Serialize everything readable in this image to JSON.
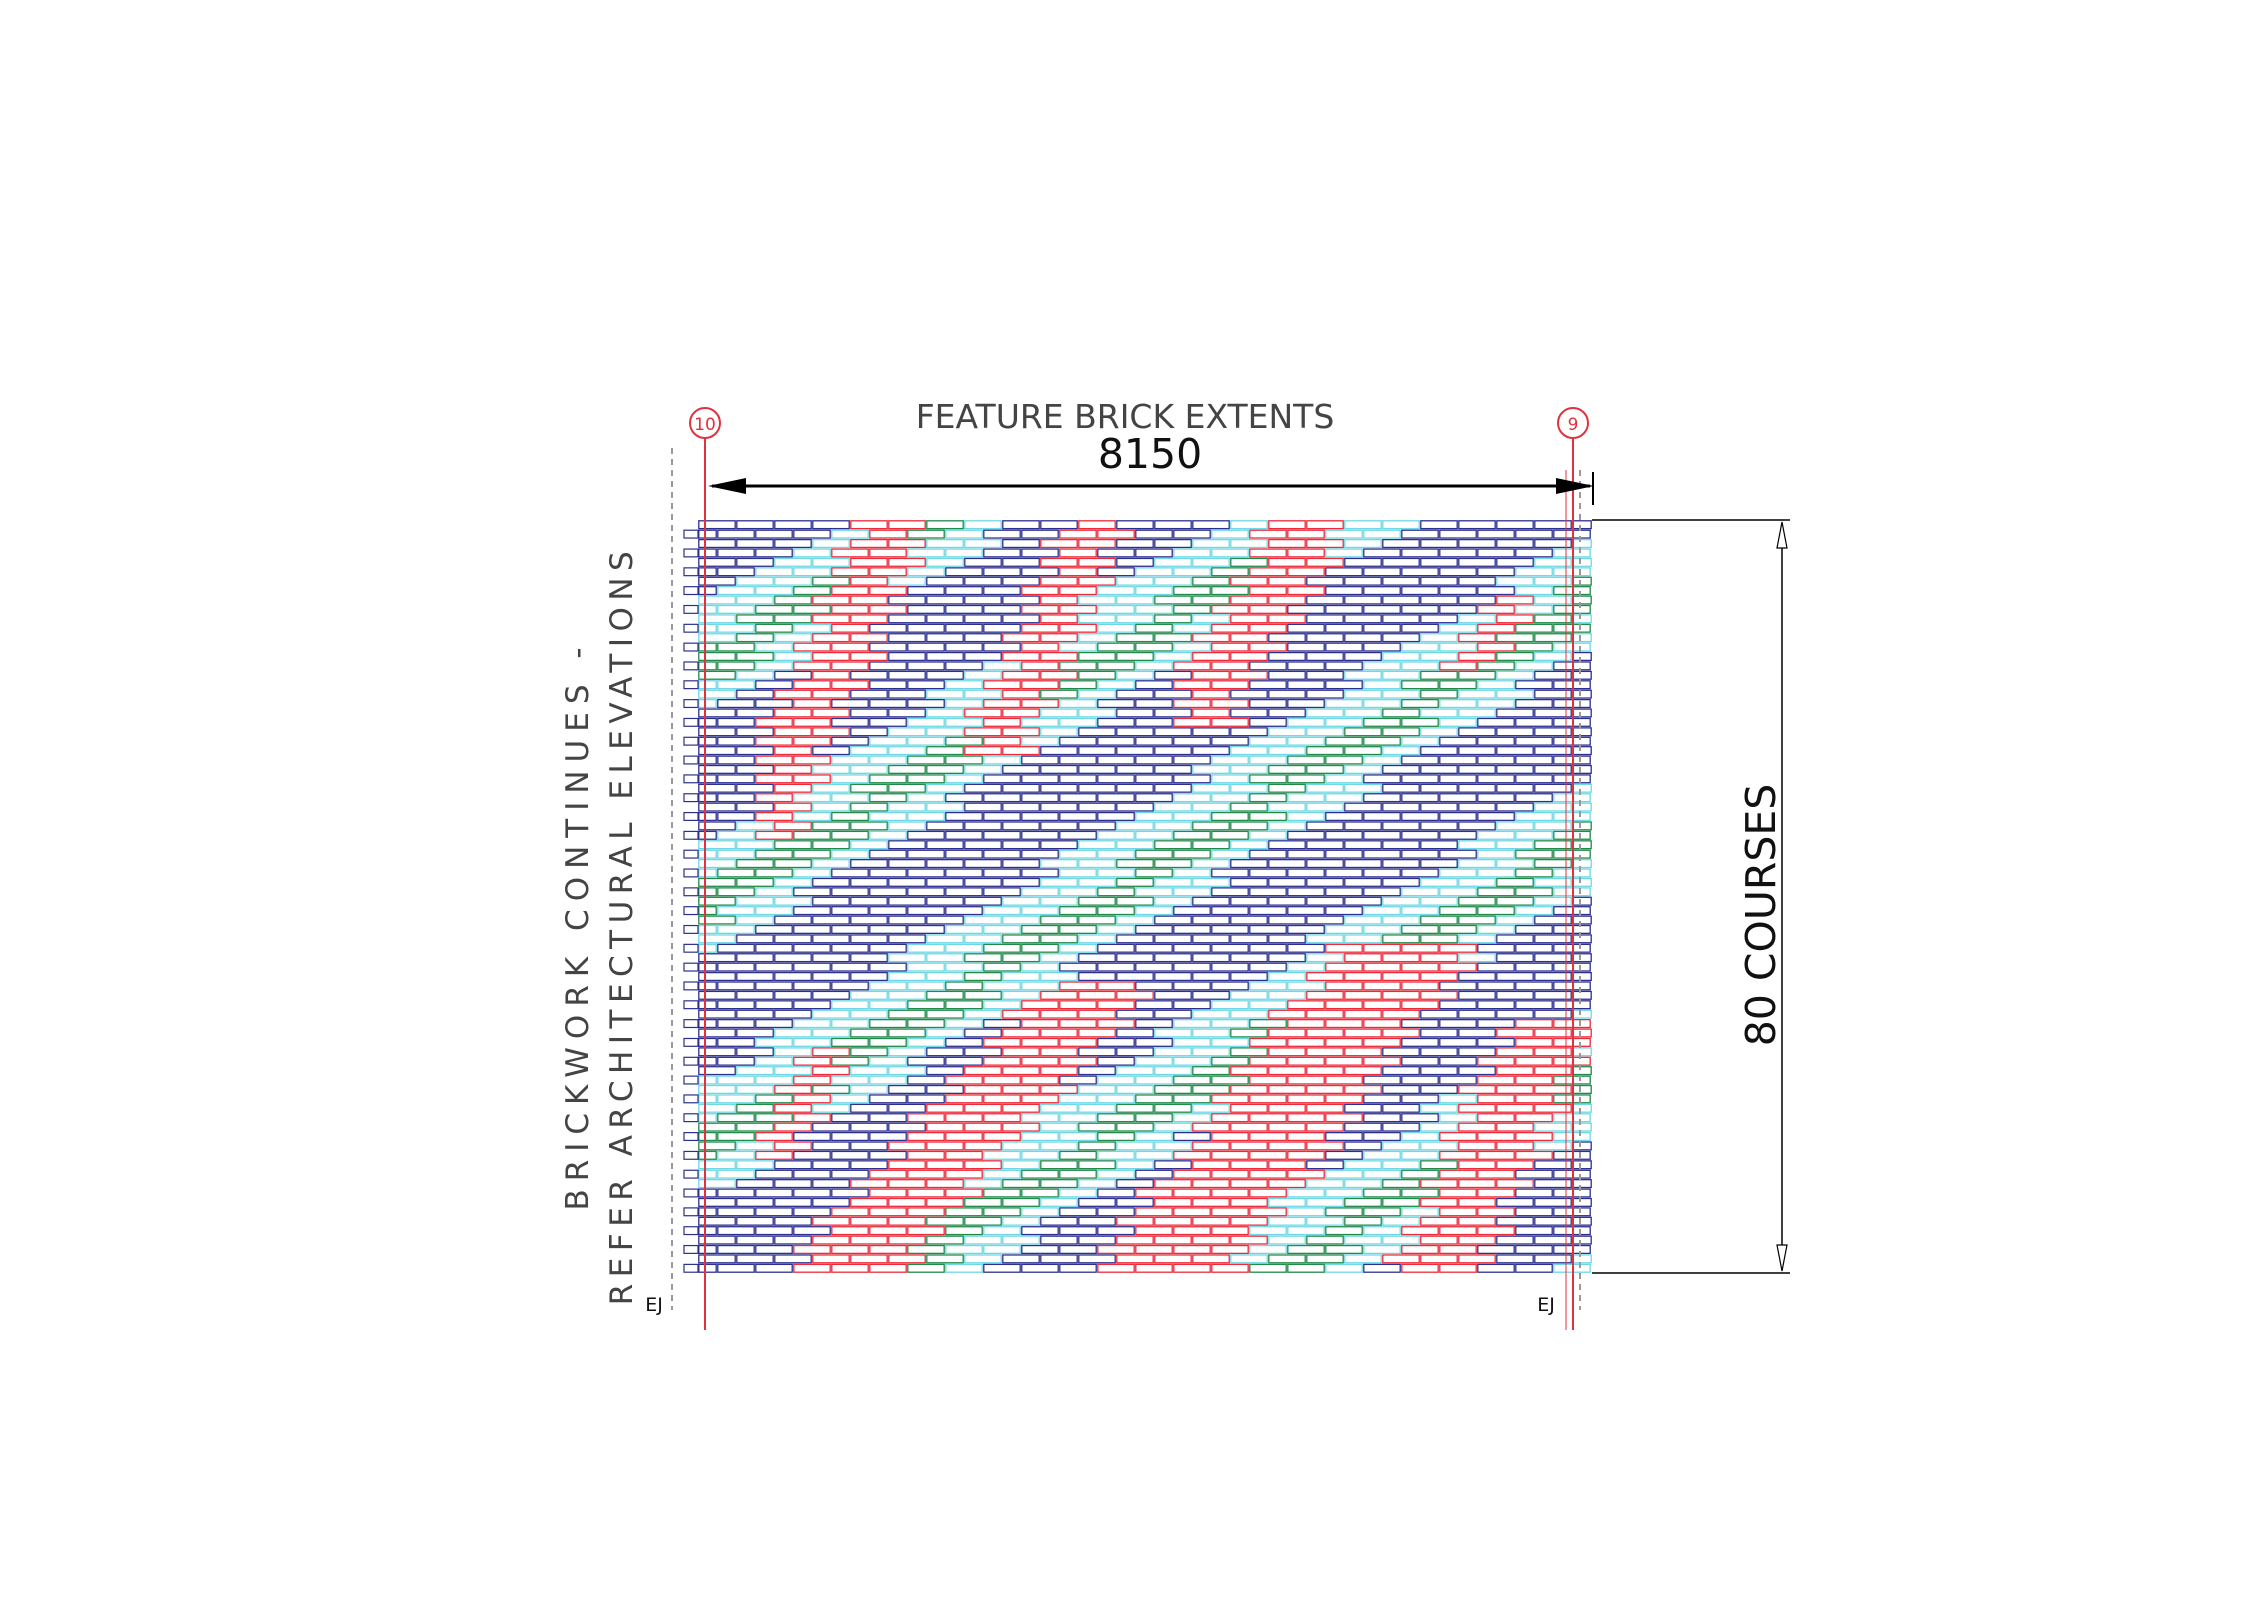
{
  "drawing": {
    "title": "FEATURE BRICK EXTENTS",
    "width_dimension": "8150",
    "height_dimension": "80 COURSES",
    "side_note_line1": "BRICKWORK CONTINUES -",
    "side_note_line2": "REFER ARCHITECTURAL ELEVATIONS",
    "grid_left": "10",
    "grid_right": "9",
    "joint_left": "EJ",
    "joint_right": "EJ"
  },
  "wall": {
    "courses": 80
  },
  "colors": {
    "dark_blue": "#2c2f8f",
    "light_cyan": "#6fd8e4",
    "green": "#1f8a4a",
    "red": "#ec2a3a",
    "gridline": "#e0323e",
    "dimension": "#000000",
    "text": "#444444"
  }
}
